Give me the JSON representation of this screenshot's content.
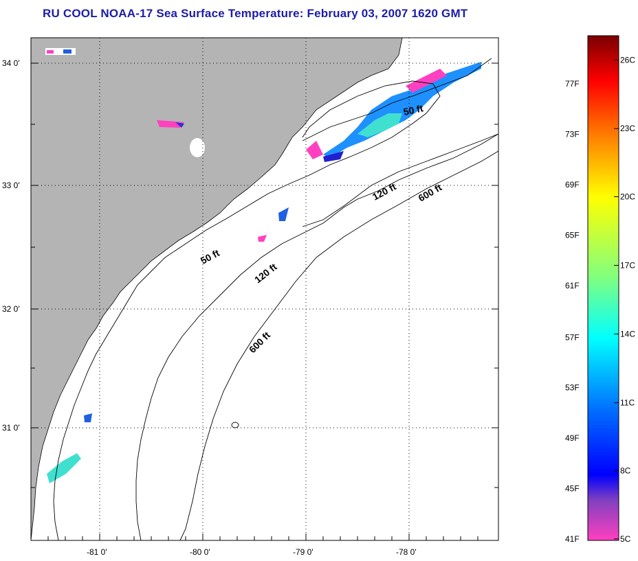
{
  "title": "RU COOL  NOAA-17  Sea Surface Temperature:  February 03, 2007 1620 GMT",
  "map": {
    "lon_ticks": [
      "-81 0'",
      "-80 0'",
      "-79 0'",
      "-78 0'"
    ],
    "lat_ticks": [
      "34 0'",
      "33 0'",
      "32 0'",
      "31 0'"
    ],
    "contours": [
      "50 ft",
      "50 ft",
      "120 ft",
      "120 ft",
      "600 ft",
      "600 ft"
    ],
    "colors": {
      "land": "#b4b4b4",
      "water": "#ffffff",
      "grid": "#000000"
    }
  },
  "colorbar": {
    "fahrenheit": [
      "77F",
      "73F",
      "69F",
      "65F",
      "61F",
      "57F",
      "53F",
      "49F",
      "45F",
      "41F"
    ],
    "celsius": [
      "26C",
      "23C",
      "20C",
      "17C",
      "14C",
      "11C",
      "8C",
      "5C"
    ],
    "gradient": [
      "#7a0000",
      "#ff0000",
      "#ff8000",
      "#ffff00",
      "#80ff80",
      "#00ffff",
      "#0070ff",
      "#0000ff",
      "#8040c0",
      "#ff40c0"
    ]
  }
}
